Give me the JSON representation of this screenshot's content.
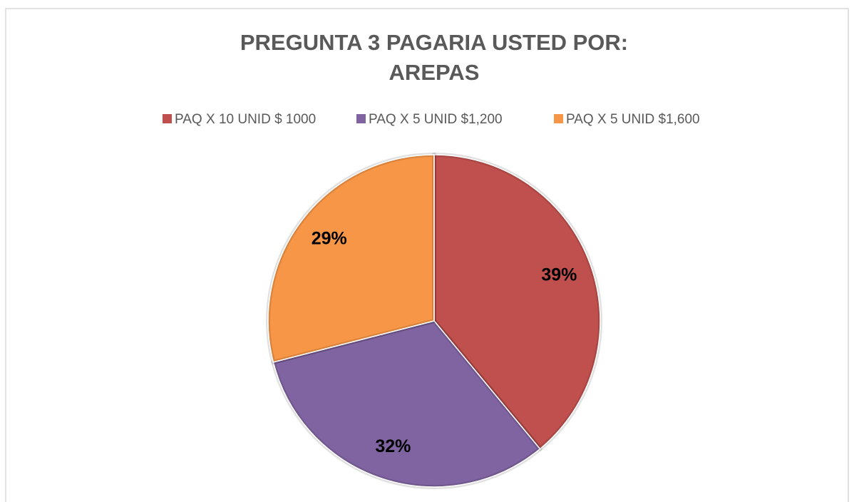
{
  "chart_data": {
    "type": "pie",
    "title": [
      "PREGUNTA 3 PAGARIA USTED POR:",
      "AREPAS"
    ],
    "categories": [
      "PAQ X 10 UNID $ 1000",
      "PAQ X 5 UNID $1,200",
      "PAQ X 5 UNID $1,600"
    ],
    "values": [
      39,
      32,
      29
    ],
    "value_labels": [
      "39%",
      "32%",
      "29%"
    ],
    "colors": [
      "#c0504d",
      "#8064a2",
      "#f79646"
    ],
    "legend": "top"
  }
}
